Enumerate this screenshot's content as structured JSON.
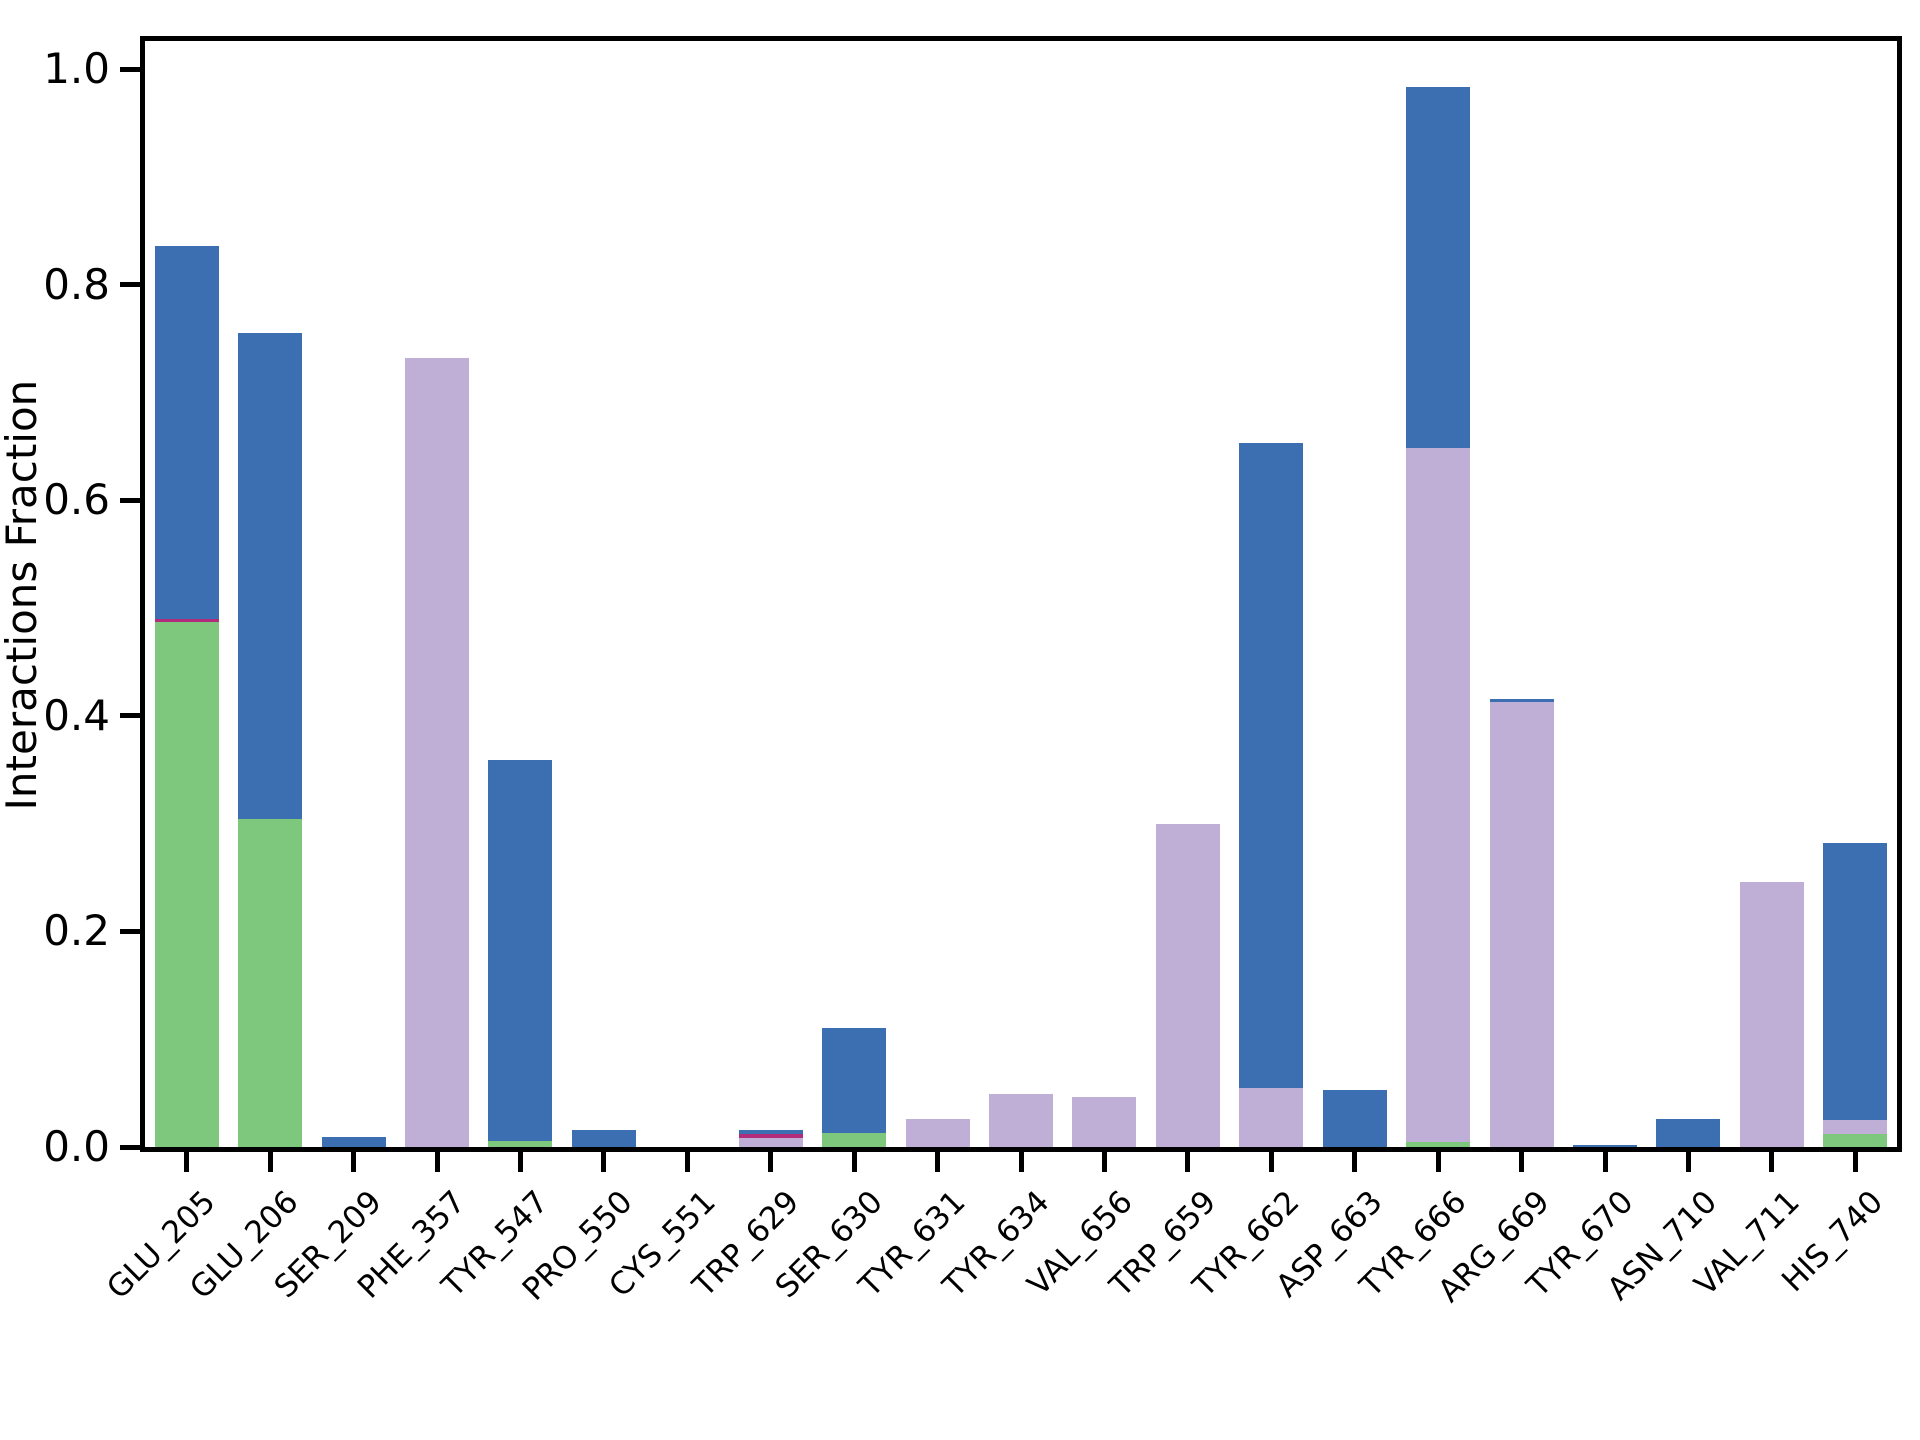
{
  "figure": {
    "background": "#ffffff",
    "spine_color": "#000000",
    "title": ""
  },
  "y_axis": {
    "label": "Interactions Fraction",
    "ticks": [
      {
        "label": "0.0",
        "value": 0.0
      },
      {
        "label": "0.2",
        "value": 0.2
      },
      {
        "label": "0.4",
        "value": 0.4
      },
      {
        "label": "0.6",
        "value": 0.6
      },
      {
        "label": "0.8",
        "value": 0.8
      },
      {
        "label": "1.0",
        "value": 1.0
      }
    ]
  },
  "colors": {
    "green": "#7ec87d",
    "purple": "#bfaed5",
    "red": "#b12d7b",
    "blue": "#3c6fb1"
  },
  "chart_data": {
    "type": "bar",
    "stacked": true,
    "title": "",
    "xlabel": "",
    "ylabel": "Interactions Fraction",
    "ylim": [
      0.0,
      1.03
    ],
    "grid": false,
    "legend": "none",
    "x_tick_rotation_deg": 45,
    "categories": [
      "GLU_205",
      "GLU_206",
      "SER_209",
      "PHE_357",
      "TYR_547",
      "PRO_550",
      "CYS_551",
      "TRP_629",
      "SER_630",
      "TYR_631",
      "TYR_634",
      "VAL_656",
      "TRP_659",
      "TYR_662",
      "ASP_663",
      "TYR_666",
      "ARG_669",
      "TYR_670",
      "ASN_710",
      "VAL_711",
      "HIS_740"
    ],
    "series": [
      {
        "name": "series-green",
        "color_key": "green",
        "values": [
          0.487,
          0.304,
          0.0,
          0.0,
          0.006,
          0.0,
          0.0,
          0.0,
          0.013,
          0.0,
          0.0,
          0.0,
          0.0,
          0.0,
          0.0,
          0.005,
          0.0,
          0.0,
          0.0,
          0.0,
          0.012
        ]
      },
      {
        "name": "series-purple",
        "color_key": "purple",
        "values": [
          0.0,
          0.0,
          0.0,
          0.732,
          0.0,
          0.0,
          0.0,
          0.008,
          0.0,
          0.026,
          0.049,
          0.046,
          0.3,
          0.055,
          0.0,
          0.644,
          0.413,
          0.0,
          0.0,
          0.246,
          0.013
        ]
      },
      {
        "name": "series-red",
        "color_key": "red",
        "values": [
          0.003,
          0.0,
          0.0,
          0.0,
          0.0,
          0.0,
          0.0,
          0.004,
          0.0,
          0.0,
          0.0,
          0.0,
          0.0,
          0.0,
          0.0,
          0.0,
          0.0,
          0.0,
          0.0,
          0.0,
          0.0
        ]
      },
      {
        "name": "series-blue",
        "color_key": "blue",
        "values": [
          0.346,
          0.451,
          0.009,
          0.0,
          0.353,
          0.016,
          0.0,
          0.004,
          0.097,
          0.0,
          0.0,
          0.0,
          0.0,
          0.598,
          0.053,
          0.335,
          0.003,
          0.002,
          0.026,
          0.0,
          0.257
        ]
      }
    ],
    "totals": [
      0.836,
      0.755,
      0.009,
      0.732,
      0.359,
      0.016,
      0.0,
      0.016,
      0.11,
      0.026,
      0.049,
      0.046,
      0.3,
      0.653,
      0.053,
      0.984,
      0.416,
      0.002,
      0.026,
      0.246,
      0.282
    ]
  }
}
